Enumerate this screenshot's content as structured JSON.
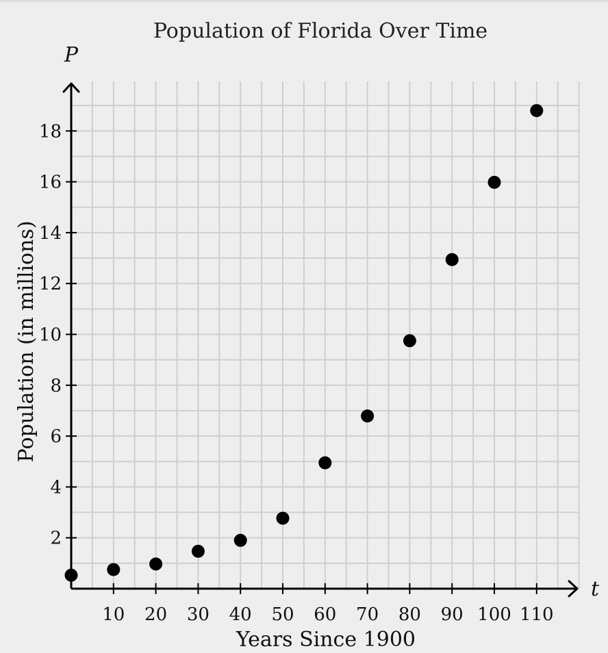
{
  "chart_data": {
    "type": "scatter",
    "title": "Population of Florida Over Time",
    "xlabel": "Years Since 1900",
    "ylabel": "Population (in millions)",
    "x_axis_variable": "t",
    "y_axis_variable": "P",
    "xlim": [
      0,
      120
    ],
    "ylim": [
      0,
      20
    ],
    "x_ticks": [
      10,
      20,
      30,
      40,
      50,
      60,
      70,
      80,
      90,
      100,
      110
    ],
    "y_ticks": [
      2,
      4,
      6,
      8,
      10,
      12,
      14,
      16,
      18
    ],
    "grid": true,
    "points": [
      {
        "x": 0,
        "y": 0.53
      },
      {
        "x": 10,
        "y": 0.75
      },
      {
        "x": 20,
        "y": 0.97
      },
      {
        "x": 30,
        "y": 1.47
      },
      {
        "x": 40,
        "y": 1.9
      },
      {
        "x": 50,
        "y": 2.77
      },
      {
        "x": 60,
        "y": 4.95
      },
      {
        "x": 70,
        "y": 6.79
      },
      {
        "x": 80,
        "y": 9.75
      },
      {
        "x": 90,
        "y": 12.94
      },
      {
        "x": 100,
        "y": 15.98
      },
      {
        "x": 110,
        "y": 18.8
      }
    ],
    "point_color": "#000000",
    "grid_color": "#cfcfcf",
    "background_color": "#eeeeee"
  }
}
